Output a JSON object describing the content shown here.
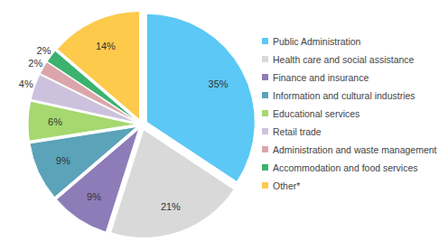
{
  "chart_data": {
    "type": "pie",
    "categories": [
      "Public Administration",
      "Health care and social assistance",
      "Finance and insurance",
      "Information and cultural industries",
      "Educational services",
      "Retail trade",
      "Administration and waste management",
      "Accommodation and food services",
      "Other*"
    ],
    "values": [
      35,
      21,
      9,
      9,
      6,
      4,
      2,
      2,
      14
    ],
    "value_labels": [
      "35%",
      "21%",
      "9%",
      "9%",
      "6%",
      "4%",
      "2%",
      "2%",
      "14%"
    ],
    "colors": [
      "#5bc8f5",
      "#d9d9d9",
      "#8e7cb8",
      "#5aa3b8",
      "#a5d86e",
      "#cdc2de",
      "#dba6ab",
      "#3bb36e",
      "#fdca4b"
    ],
    "data_labels": true,
    "legend": "right"
  }
}
